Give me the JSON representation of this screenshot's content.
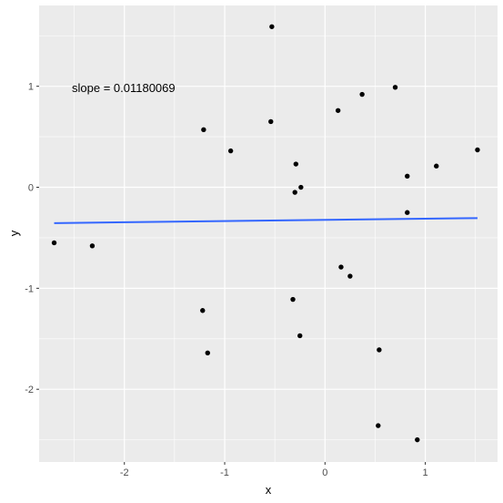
{
  "chart_data": {
    "type": "scatter",
    "title": "",
    "xlabel": "x",
    "ylabel": "y",
    "xlim": [
      -2.85,
      1.72
    ],
    "ylim": [
      -2.72,
      1.8
    ],
    "x_ticks": [
      -2,
      -1,
      0,
      1
    ],
    "y_ticks": [
      -2,
      -1,
      0,
      1
    ],
    "x_tick_labels": [
      "-2",
      "-1",
      "0",
      "1"
    ],
    "y_tick_labels": [
      "-2",
      "-1",
      "0",
      "1"
    ],
    "grid": true,
    "legend": "none",
    "annotation": "slope = 0.01180069",
    "panel_color": "#ebebeb",
    "grid_color": "#ffffff",
    "point_color": "#000000",
    "line_color": "#3366ff",
    "points": [
      {
        "x": -2.7,
        "y": -0.55
      },
      {
        "x": -2.32,
        "y": -0.58
      },
      {
        "x": -1.21,
        "y": 0.57
      },
      {
        "x": -1.22,
        "y": -1.22
      },
      {
        "x": -1.17,
        "y": -1.64
      },
      {
        "x": -0.94,
        "y": 0.36
      },
      {
        "x": -0.53,
        "y": 1.59
      },
      {
        "x": -0.54,
        "y": 0.65
      },
      {
        "x": -0.29,
        "y": 0.23
      },
      {
        "x": -0.3,
        "y": -0.05
      },
      {
        "x": -0.24,
        "y": 0.0
      },
      {
        "x": -0.32,
        "y": -1.11
      },
      {
        "x": -0.25,
        "y": -1.47
      },
      {
        "x": 0.13,
        "y": 0.76
      },
      {
        "x": 0.37,
        "y": 0.92
      },
      {
        "x": 0.16,
        "y": -0.79
      },
      {
        "x": 0.25,
        "y": -0.88
      },
      {
        "x": 0.7,
        "y": 0.99
      },
      {
        "x": 0.82,
        "y": 0.11
      },
      {
        "x": 0.82,
        "y": -0.25
      },
      {
        "x": 0.54,
        "y": -1.61
      },
      {
        "x": 0.53,
        "y": -2.36
      },
      {
        "x": 0.92,
        "y": -2.5
      },
      {
        "x": 1.11,
        "y": 0.21
      },
      {
        "x": 1.52,
        "y": 0.37
      }
    ],
    "fit_line": {
      "x": [
        -2.7,
        1.52
      ],
      "y": [
        -0.355,
        -0.305
      ]
    }
  }
}
